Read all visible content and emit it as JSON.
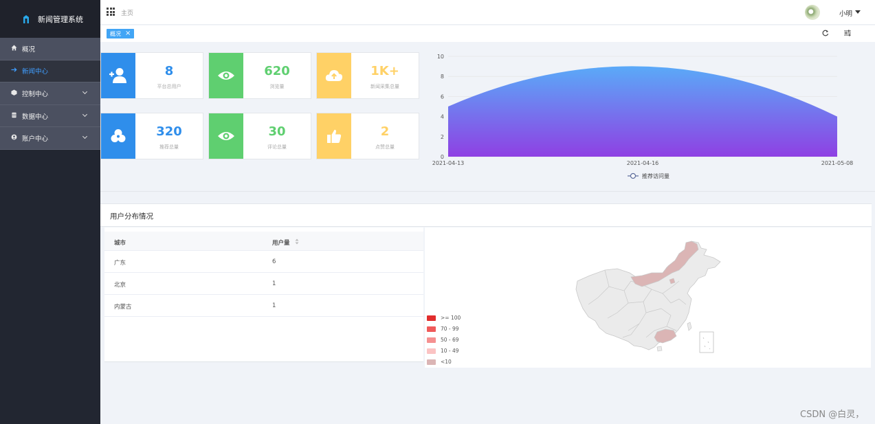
{
  "app": {
    "title": "新闻管理系统"
  },
  "sidebar": {
    "items": [
      {
        "label": "概况",
        "icon": "home-icon"
      },
      {
        "label": "新闻中心",
        "icon": "arrow-right-icon"
      },
      {
        "label": "控制中心",
        "icon": "cube-icon"
      },
      {
        "label": "数据中心",
        "icon": "database-icon"
      },
      {
        "label": "账户中心",
        "icon": "account-icon"
      }
    ]
  },
  "header": {
    "breadcrumb": "主页",
    "user_name": "小明"
  },
  "tabs": [
    {
      "label": "概况"
    }
  ],
  "stats": [
    {
      "value": "8",
      "label": "平台总用户",
      "color": "#2f8eeb",
      "icon": "add-user-icon"
    },
    {
      "value": "620",
      "label": "浏览量",
      "color": "#5fcf70",
      "icon": "eye-icon"
    },
    {
      "value": "1K+",
      "label": "新闻采集总量",
      "color": "#ffd166",
      "icon": "cloud-upload-icon"
    },
    {
      "value": "320",
      "label": "推荐总量",
      "color": "#2f8eeb",
      "icon": "share-icon"
    },
    {
      "value": "30",
      "label": "评论总量",
      "color": "#5fcf70",
      "icon": "eye-icon"
    },
    {
      "value": "2",
      "label": "点赞总量",
      "color": "#ffd166",
      "icon": "thumbs-up-icon"
    }
  ],
  "chart_data": {
    "type": "area",
    "x": [
      "2021-04-13",
      "2021-04-16",
      "2021-05-08"
    ],
    "series": [
      {
        "name": "推荐访问量",
        "values": [
          5,
          9,
          4
        ]
      }
    ],
    "yticks": [
      0,
      2,
      4,
      6,
      8,
      10
    ],
    "ylim": [
      0,
      10
    ],
    "grid": true,
    "legend": "bottom-center",
    "gradient": [
      "#5aaaf8",
      "#8f40e3"
    ]
  },
  "distribution": {
    "title": "用户分布情况",
    "columns": [
      "城市",
      "用户量"
    ],
    "rows": [
      {
        "city": "广东",
        "count": "6"
      },
      {
        "city": "北京",
        "count": "1"
      },
      {
        "city": "内蒙古",
        "count": "1"
      }
    ],
    "legend": [
      {
        "label": ">= 100",
        "color": "#e12d2d"
      },
      {
        "label": "70 - 99",
        "color": "#f05a5a"
      },
      {
        "label": "50 - 69",
        "color": "#f59090"
      },
      {
        "label": "10 - 49",
        "color": "#fbc3c3"
      },
      {
        "label": "<10",
        "color": "#dbb5b5"
      }
    ]
  },
  "watermark": "CSDN @白灵，"
}
